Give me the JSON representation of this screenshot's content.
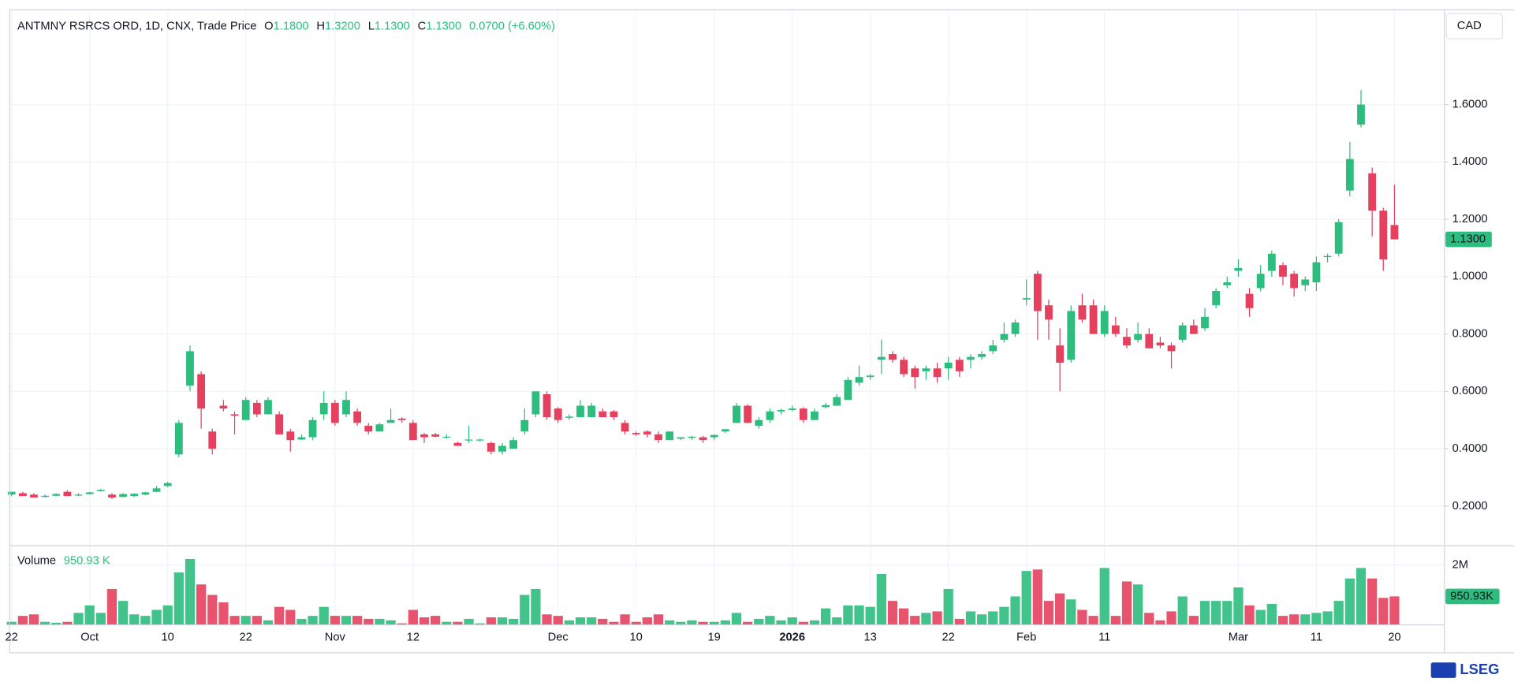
{
  "chart_data": {
    "type": "candlestick",
    "title": "ANTMNY RSRCS ORD, 1D, CNX, Trade Price",
    "ohlc_legend": [
      {
        "label": "O",
        "value": "1.1800"
      },
      {
        "label": "H",
        "value": "1.3200"
      },
      {
        "label": "L",
        "value": "1.1300"
      },
      {
        "label": "C",
        "value": "1.1300"
      }
    ],
    "change_label": "0.0700 (+6.60%)",
    "currency": "CAD",
    "last_price_label": "1.1300",
    "up_color": "#2dbd7e",
    "down_color": "#e5405e",
    "grid": true,
    "categories": [
      "22",
      null,
      null,
      null,
      null,
      null,
      null,
      "Oct",
      null,
      null,
      null,
      null,
      null,
      null,
      "10",
      null,
      null,
      null,
      null,
      null,
      null,
      "22",
      null,
      null,
      null,
      null,
      null,
      null,
      null,
      "Nov",
      null,
      null,
      null,
      null,
      null,
      null,
      "12",
      null,
      null,
      null,
      null,
      null,
      null,
      null,
      null,
      null,
      null,
      null,
      null,
      "Dec",
      null,
      null,
      null,
      null,
      null,
      null,
      "10",
      null,
      null,
      null,
      null,
      null,
      null,
      "19",
      null,
      null,
      null,
      null,
      null,
      null,
      "2026",
      null,
      null,
      null,
      null,
      null,
      null,
      "13",
      null,
      null,
      null,
      null,
      null,
      null,
      "22",
      null,
      null,
      null,
      null,
      null,
      null,
      "Feb",
      null,
      null,
      null,
      null,
      null,
      null,
      "11",
      null,
      null,
      null,
      null,
      null,
      null,
      null,
      null,
      null,
      null,
      null,
      "Mar",
      null,
      null,
      null,
      null,
      null,
      null,
      "11",
      null,
      null,
      null,
      null,
      null,
      null,
      "20"
    ],
    "open": [
      0.24,
      0.245,
      0.24,
      0.232,
      0.236,
      0.25,
      0.24,
      0.242,
      0.252,
      0.24,
      0.232,
      0.235,
      0.24,
      0.25,
      0.27,
      0.38,
      0.62,
      0.66,
      0.46,
      0.55,
      0.52,
      0.5,
      0.56,
      0.52,
      0.52,
      0.46,
      0.432,
      0.44,
      0.52,
      0.56,
      0.52,
      0.53,
      0.48,
      0.46,
      0.49,
      0.505,
      0.49,
      0.45,
      0.45,
      0.44,
      0.42,
      0.43,
      0.43,
      0.42,
      0.39,
      0.4,
      0.46,
      0.52,
      0.59,
      0.54,
      0.508,
      0.51,
      0.51,
      0.53,
      0.53,
      0.49,
      0.455,
      0.46,
      0.45,
      0.43,
      0.435,
      0.438,
      0.44,
      0.44,
      0.46,
      0.49,
      0.55,
      0.48,
      0.5,
      0.53,
      0.535,
      0.54,
      0.5,
      0.545,
      0.55,
      0.57,
      0.63,
      0.65,
      0.71,
      0.73,
      0.71,
      0.68,
      0.67,
      0.68,
      0.68,
      0.71,
      0.71,
      0.72,
      0.74,
      0.78,
      0.8,
      0.92,
      1.01,
      0.9,
      0.76,
      0.71,
      0.9,
      0.9,
      0.8,
      0.83,
      0.79,
      0.78,
      0.8,
      0.77,
      0.76,
      0.78,
      0.83,
      0.82,
      0.9,
      0.97,
      1.02,
      0.94,
      0.96,
      1.02,
      1.04,
      1.01,
      0.97,
      0.98,
      1.068,
      1.08,
      1.3,
      1.53,
      1.36,
      1.23,
      1.18
    ],
    "high": [
      0.25,
      0.25,
      0.245,
      0.24,
      0.245,
      0.255,
      0.245,
      0.25,
      0.26,
      0.245,
      0.245,
      0.245,
      0.25,
      0.27,
      0.285,
      0.5,
      0.76,
      0.67,
      0.47,
      0.57,
      0.53,
      0.58,
      0.57,
      0.58,
      0.53,
      0.47,
      0.45,
      0.51,
      0.6,
      0.57,
      0.6,
      0.54,
      0.49,
      0.49,
      0.54,
      0.51,
      0.5,
      0.455,
      0.455,
      0.45,
      0.425,
      0.48,
      0.435,
      0.425,
      0.42,
      0.44,
      0.54,
      0.6,
      0.6,
      0.545,
      0.52,
      0.57,
      0.56,
      0.54,
      0.535,
      0.5,
      0.46,
      0.465,
      0.46,
      0.46,
      0.44,
      0.445,
      0.445,
      0.45,
      0.47,
      0.56,
      0.555,
      0.51,
      0.54,
      0.54,
      0.55,
      0.545,
      0.54,
      0.56,
      0.59,
      0.65,
      0.69,
      0.66,
      0.78,
      0.74,
      0.72,
      0.69,
      0.69,
      0.7,
      0.72,
      0.72,
      0.73,
      0.74,
      0.78,
      0.84,
      0.85,
      0.99,
      1.02,
      0.92,
      0.82,
      0.9,
      0.94,
      0.92,
      0.9,
      0.86,
      0.82,
      0.84,
      0.82,
      0.79,
      0.77,
      0.84,
      0.85,
      0.89,
      0.96,
      1.0,
      1.06,
      0.96,
      1.04,
      1.09,
      1.05,
      1.02,
      1.0,
      1.07,
      1.08,
      1.2,
      1.47,
      1.65,
      1.38,
      1.24,
      1.32
    ],
    "low": [
      0.235,
      0.235,
      0.23,
      0.23,
      0.235,
      0.235,
      0.235,
      0.24,
      0.25,
      0.225,
      0.23,
      0.232,
      0.238,
      0.248,
      0.265,
      0.37,
      0.6,
      0.47,
      0.38,
      0.53,
      0.45,
      0.5,
      0.51,
      0.52,
      0.45,
      0.39,
      0.43,
      0.43,
      0.5,
      0.48,
      0.51,
      0.48,
      0.45,
      0.46,
      0.49,
      0.49,
      0.43,
      0.42,
      0.44,
      0.435,
      0.41,
      0.42,
      0.425,
      0.38,
      0.38,
      0.4,
      0.45,
      0.51,
      0.5,
      0.49,
      0.5,
      0.51,
      0.51,
      0.51,
      0.5,
      0.45,
      0.445,
      0.44,
      0.42,
      0.43,
      0.43,
      0.43,
      0.42,
      0.43,
      0.455,
      0.49,
      0.49,
      0.47,
      0.49,
      0.52,
      0.53,
      0.49,
      0.5,
      0.54,
      0.55,
      0.57,
      0.62,
      0.64,
      0.66,
      0.7,
      0.65,
      0.61,
      0.64,
      0.63,
      0.64,
      0.65,
      0.68,
      0.71,
      0.73,
      0.77,
      0.79,
      0.9,
      0.78,
      0.78,
      0.6,
      0.7,
      0.84,
      0.8,
      0.79,
      0.79,
      0.75,
      0.77,
      0.75,
      0.75,
      0.68,
      0.77,
      0.8,
      0.81,
      0.89,
      0.96,
      1.0,
      0.86,
      0.95,
      1.0,
      0.97,
      0.93,
      0.95,
      0.95,
      1.05,
      1.07,
      1.28,
      1.52,
      1.14,
      1.02,
      1.13
    ],
    "close": [
      0.25,
      0.235,
      0.23,
      0.236,
      0.242,
      0.235,
      0.24,
      0.248,
      0.256,
      0.23,
      0.242,
      0.243,
      0.248,
      0.262,
      0.28,
      0.49,
      0.74,
      0.54,
      0.4,
      0.54,
      0.515,
      0.57,
      0.52,
      0.57,
      0.45,
      0.43,
      0.44,
      0.5,
      0.56,
      0.49,
      0.57,
      0.49,
      0.46,
      0.485,
      0.5,
      0.5,
      0.43,
      0.44,
      0.442,
      0.442,
      0.41,
      0.432,
      0.432,
      0.39,
      0.41,
      0.43,
      0.5,
      0.6,
      0.51,
      0.5,
      0.512,
      0.55,
      0.55,
      0.51,
      0.51,
      0.46,
      0.45,
      0.45,
      0.43,
      0.46,
      0.44,
      0.442,
      0.43,
      0.448,
      0.468,
      0.55,
      0.49,
      0.5,
      0.53,
      0.535,
      0.54,
      0.5,
      0.53,
      0.552,
      0.58,
      0.64,
      0.65,
      0.655,
      0.72,
      0.71,
      0.66,
      0.65,
      0.68,
      0.65,
      0.7,
      0.67,
      0.72,
      0.73,
      0.76,
      0.8,
      0.84,
      0.925,
      0.88,
      0.85,
      0.7,
      0.88,
      0.85,
      0.8,
      0.88,
      0.8,
      0.76,
      0.8,
      0.75,
      0.76,
      0.74,
      0.83,
      0.8,
      0.86,
      0.95,
      0.98,
      1.03,
      0.89,
      1.01,
      1.08,
      1.0,
      0.96,
      0.99,
      1.05,
      1.072,
      1.19,
      1.41,
      1.6,
      1.23,
      1.06,
      1.13
    ],
    "ylim": [
      0.062,
      1.93
    ],
    "yticks": [
      {
        "value": 0.2,
        "label": "0.2000"
      },
      {
        "value": 0.4,
        "label": "0.4000"
      },
      {
        "value": 0.6,
        "label": "0.6000"
      },
      {
        "value": 0.8,
        "label": "0.8000"
      },
      {
        "value": 1.0,
        "label": "1.0000"
      },
      {
        "value": 1.2,
        "label": "1.2000"
      },
      {
        "value": 1.4,
        "label": "1.4000"
      },
      {
        "value": 1.6,
        "label": "1.6000"
      }
    ],
    "volume": {
      "name": "Volume",
      "last_label": "950.93 K",
      "axis_label": "950.93K",
      "values": [
        100000,
        300000,
        350000,
        100000,
        70000,
        100000,
        400000,
        650000,
        400000,
        1200000,
        800000,
        350000,
        300000,
        500000,
        650000,
        1750000,
        2200000,
        1350000,
        1000000,
        750000,
        300000,
        300000,
        300000,
        150000,
        600000,
        500000,
        200000,
        300000,
        600000,
        300000,
        300000,
        300000,
        200000,
        200000,
        150000,
        50000,
        500000,
        250000,
        300000,
        100000,
        100000,
        200000,
        50000,
        250000,
        250000,
        200000,
        1000000,
        1200000,
        350000,
        300000,
        150000,
        250000,
        250000,
        200000,
        100000,
        350000,
        100000,
        250000,
        350000,
        150000,
        100000,
        150000,
        100000,
        100000,
        150000,
        400000,
        100000,
        200000,
        300000,
        150000,
        250000,
        100000,
        150000,
        550000,
        250000,
        650000,
        650000,
        600000,
        1700000,
        800000,
        550000,
        300000,
        400000,
        450000,
        1200000,
        200000,
        450000,
        350000,
        450000,
        600000,
        950000,
        1800000,
        1850000,
        800000,
        1050000,
        850000,
        500000,
        300000,
        1900000,
        300000,
        1450000,
        1350000,
        400000,
        150000,
        450000,
        950000,
        300000,
        800000,
        800000,
        800000,
        1250000,
        650000,
        500000,
        700000,
        300000,
        350000,
        350000,
        400000,
        450000,
        800000,
        1550000,
        1900000,
        1550000,
        900000,
        950930
      ],
      "ylim": [
        0,
        2645000
      ],
      "yticks": [
        {
          "value": 2000000,
          "label": "2M"
        }
      ]
    },
    "logo": "LSEG"
  }
}
